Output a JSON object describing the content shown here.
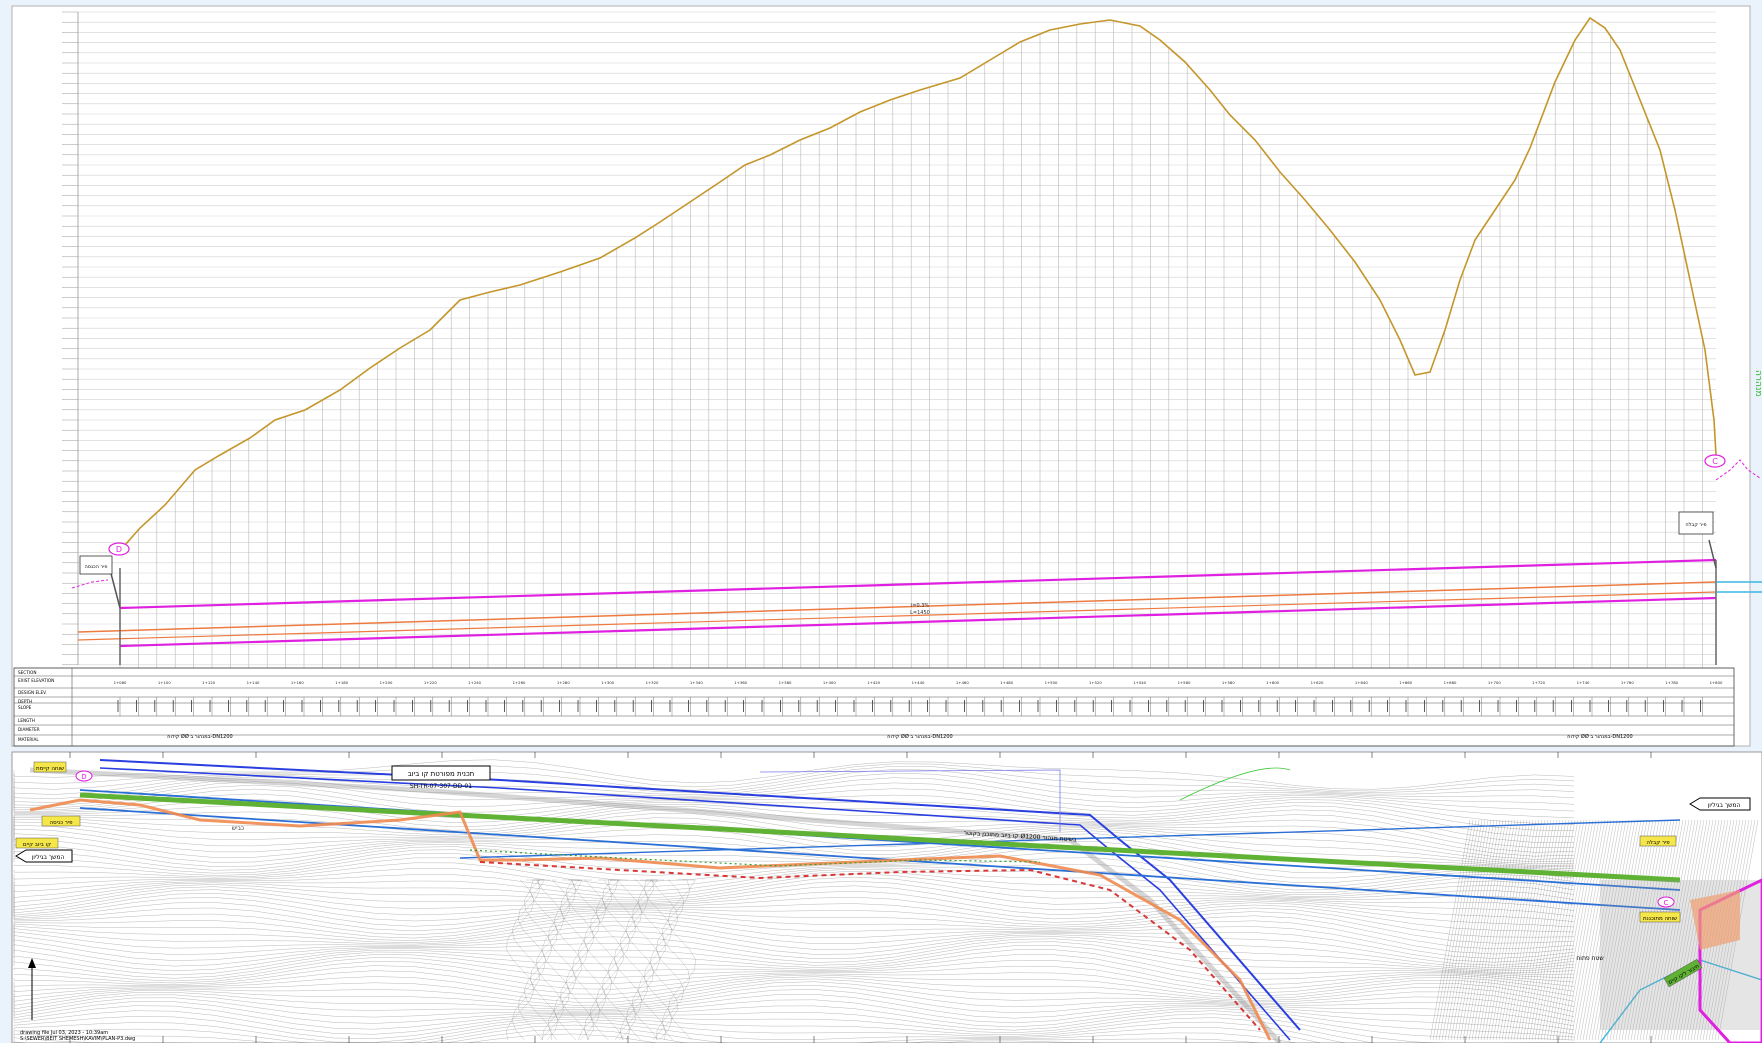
{
  "profile": {
    "ground_line_color": "#c4962a",
    "pipe_top_color": "#e020e0",
    "pipe_mid_color": "#ee7a40",
    "grid_color": "#bfbfbf",
    "station_labels": [
      "1+080",
      "1+100",
      "1+120",
      "1+140",
      "1+160",
      "1+180",
      "1+200",
      "1+220",
      "1+240",
      "1+260",
      "1+280",
      "1+300",
      "1+320",
      "1+340",
      "1+360",
      "1+380",
      "1+400",
      "1+420",
      "1+440",
      "1+460",
      "1+480",
      "1+500",
      "1+520",
      "1+540",
      "1+560",
      "1+580",
      "1+600",
      "1+620",
      "1+640",
      "1+660",
      "1+680",
      "1+700",
      "1+720",
      "1+740",
      "1+760",
      "1+780",
      "1+800"
    ],
    "left_shaft_marker": "D",
    "right_shaft_marker": "C",
    "left_shaft_note": "פיר הכנסה",
    "right_shaft_note": "פיר קבלה",
    "pipe_slope_label": "i=0.3%",
    "pipe_length_label": "L=1450",
    "side_note": "מנהרה",
    "table_rows": [
      "SECTION",
      "EXIST ELEVATION",
      "DESIGN ELEV.",
      "DEPTH",
      "SLOPE",
      "LENGTH",
      "DIAMETER",
      "MATERIAL"
    ],
    "pipe_desc_text": "קידוח ØØ במנהור ב-DN1200",
    "bottom_station_text": "3+460.00"
  },
  "plan": {
    "title_box": "תכנית מפורטת קו ביוב",
    "title_code": "SH-TR-07-307-DD-01",
    "right_arrow_label": "המשך בגיליון",
    "left_arrow_label": "המשך בגיליון",
    "pipe_label": "קו ביוב מתוכנן בקוטר Ø1200 בשיטת מנהור",
    "road_label": "כביש",
    "footer_line1": "drawing file  Jul 03, 2023 - 10:39am",
    "footer_line2": "S:\\SEWER\\BEIT SHEMESH\\KAVIM\\PLAN-P3.dwg",
    "left_callouts": [
      "שוחה קיימת",
      "פיר כניסה",
      "קו ביוב קיים"
    ],
    "right_callouts": [
      "פיר קבלה",
      "שוחה מתוכננת",
      "חיבור לקו קיים"
    ],
    "bottom_note": "שטח פתוח",
    "green_line_color": "#5fb234",
    "blue_line_color": "#2a6fd6",
    "orange_line_color": "#f08a50"
  }
}
